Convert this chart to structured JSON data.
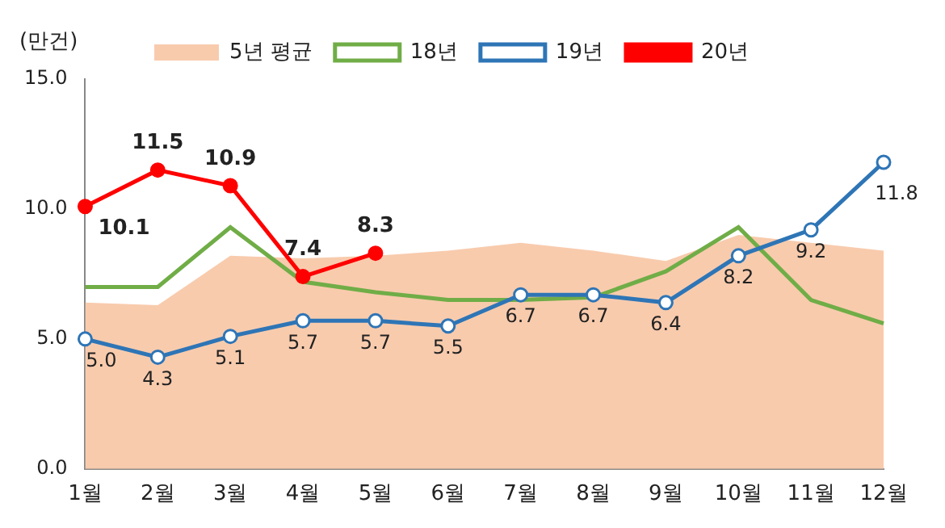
{
  "chart_data": {
    "type": "line",
    "ylabel": "(만건)",
    "categories": [
      "1월",
      "2월",
      "3월",
      "4월",
      "5월",
      "6월",
      "7월",
      "8월",
      "9월",
      "10월",
      "11월",
      "12월"
    ],
    "ylim": [
      0,
      15
    ],
    "yticks": [
      {
        "value": 0,
        "label": "0.0"
      },
      {
        "value": 5,
        "label": "5.0"
      },
      {
        "value": 10,
        "label": "10.0"
      },
      {
        "value": 15,
        "label": "15.0"
      }
    ],
    "grid": false,
    "legend": "top",
    "series": [
      {
        "name": "5년 평균",
        "type": "area",
        "color": "#f8cbad",
        "marker": "none",
        "values": [
          6.4,
          6.3,
          8.2,
          8.1,
          8.2,
          8.4,
          8.7,
          8.4,
          8.0,
          9.0,
          8.7,
          8.4
        ]
      },
      {
        "name": "18년",
        "color": "#70ad47",
        "marker": "none",
        "values": [
          7.0,
          7.0,
          9.3,
          7.2,
          6.8,
          6.5,
          6.5,
          6.6,
          7.6,
          9.3,
          6.5,
          5.6
        ]
      },
      {
        "name": "19년",
        "color": "#2e75b6",
        "marker": "circle",
        "values": [
          5.0,
          4.3,
          5.1,
          5.7,
          5.7,
          5.5,
          6.7,
          6.7,
          6.4,
          8.2,
          9.2,
          11.8
        ],
        "value_labels": [
          "5.0",
          "4.3",
          "5.1",
          "5.7",
          "5.7",
          "5.5",
          "6.7",
          "6.7",
          "6.4",
          "8.2",
          "9.2",
          "11.8"
        ]
      },
      {
        "name": "20년",
        "color": "#ff0000",
        "marker": "circle",
        "values": [
          10.1,
          11.5,
          10.9,
          7.4,
          8.3,
          null,
          null,
          null,
          null,
          null,
          null,
          null
        ],
        "value_labels": [
          "10.1",
          "11.5",
          "10.9",
          "7.4",
          "8.3",
          null,
          null,
          null,
          null,
          null,
          null,
          null
        ]
      }
    ]
  }
}
